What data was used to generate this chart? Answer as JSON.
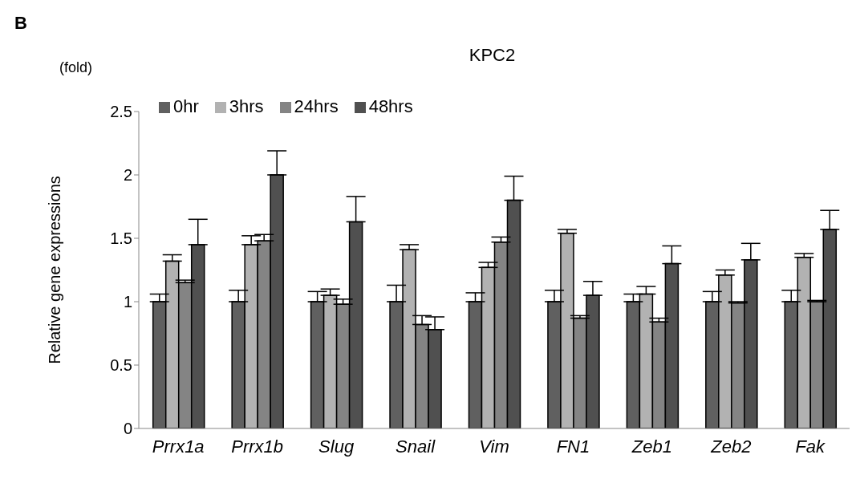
{
  "chart_data": {
    "type": "bar",
    "title": "KPC2",
    "ylabel": "Relative gene expressions",
    "annotations": [
      "B",
      "(fold)"
    ],
    "categories": [
      "Prrx1a",
      "Prrx1b",
      "Slug",
      "Snail",
      "Vim",
      "FN1",
      "Zeb1",
      "Zeb2",
      "Fak"
    ],
    "series": [
      {
        "name": "0hr",
        "color": "#606060",
        "values": [
          1,
          1,
          1,
          1,
          1,
          1,
          1,
          1,
          1
        ],
        "errors": [
          [
            1,
            1.06
          ],
          [
            1,
            1.09
          ],
          [
            1,
            1.08
          ],
          [
            1,
            1.13
          ],
          [
            1,
            1.07
          ],
          [
            1,
            1.09
          ],
          [
            1,
            1.06
          ],
          [
            1,
            1.08
          ],
          [
            1,
            1.09
          ]
        ]
      },
      {
        "name": "3hrs",
        "color": "#b2b2b2",
        "values": [
          1.32,
          1.45,
          1.05,
          1.41,
          1.27,
          1.54,
          1.06,
          1.21,
          1.35
        ],
        "errors": [
          [
            1.32,
            1.37
          ],
          [
            1.45,
            1.52
          ],
          [
            1.05,
            1.1
          ],
          [
            1.41,
            1.45
          ],
          [
            1.27,
            1.31
          ],
          [
            1.54,
            1.57
          ],
          [
            1.06,
            1.12
          ],
          [
            1.21,
            1.25
          ],
          [
            1.35,
            1.38
          ]
        ]
      },
      {
        "name": "24hrs",
        "color": "#848484",
        "values": [
          1.15,
          1.48,
          0.98,
          0.82,
          1.47,
          0.87,
          0.84,
          0.99,
          1.0
        ],
        "errors": [
          [
            1.15,
            1.17
          ],
          [
            1.48,
            1.53
          ],
          [
            0.98,
            1.02
          ],
          [
            0.82,
            0.89
          ],
          [
            1.47,
            1.51
          ],
          [
            0.87,
            0.89
          ],
          [
            0.84,
            0.87
          ],
          [
            0.99,
            1.0
          ],
          [
            1.0,
            1.01
          ]
        ]
      },
      {
        "name": "48hrs",
        "color": "#505050",
        "values": [
          1.45,
          2.0,
          1.63,
          0.78,
          1.8,
          1.05,
          1.3,
          1.33,
          1.57
        ],
        "errors": [
          [
            1.45,
            1.65
          ],
          [
            2.0,
            2.19
          ],
          [
            1.63,
            1.83
          ],
          [
            0.78,
            0.88
          ],
          [
            1.8,
            1.99
          ],
          [
            1.05,
            1.16
          ],
          [
            1.3,
            1.44
          ],
          [
            1.33,
            1.46
          ],
          [
            1.57,
            1.72
          ]
        ]
      }
    ],
    "ylim": [
      0,
      2.5
    ],
    "yticks": [
      0,
      0.5,
      1,
      1.5,
      2,
      2.5
    ],
    "legend": "top left"
  }
}
